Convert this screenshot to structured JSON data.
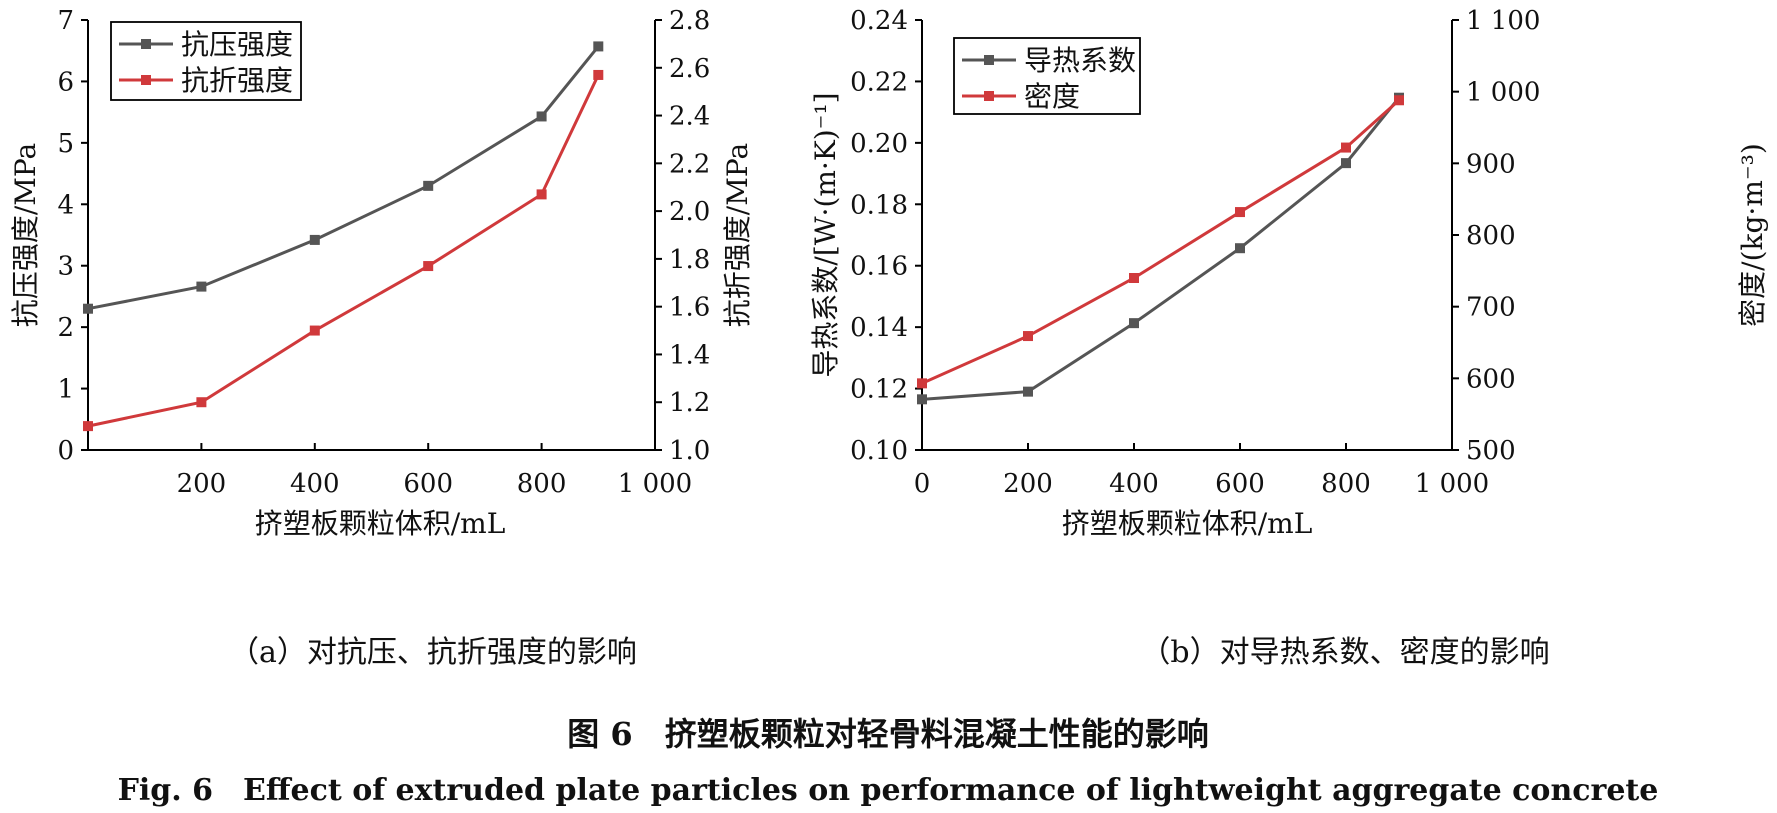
{
  "chart_data": [
    {
      "type": "line",
      "subcaption": "（a）对抗压、抗折强度的影响",
      "xlabel": "挤塑板颗粒体积/mL",
      "ylabel_left": "抗压强度/MPa",
      "ylabel_right": "抗折强度/MPa",
      "xlim": [
        0,
        1000
      ],
      "ylim_left": [
        0,
        7
      ],
      "ylim_right": [
        1.0,
        2.8
      ],
      "x_ticks": [
        200,
        400,
        600,
        800,
        1000
      ],
      "x_tick_labels": [
        "200",
        "400",
        "600",
        "800",
        "1 000"
      ],
      "y_ticks_left": [
        0,
        1,
        2,
        3,
        4,
        5,
        6,
        7
      ],
      "y_tick_labels_left": [
        "0",
        "1",
        "2",
        "3",
        "4",
        "5",
        "6",
        "7"
      ],
      "y_ticks_right": [
        1.0,
        1.2,
        1.4,
        1.6,
        1.8,
        2.0,
        2.2,
        2.4,
        2.6,
        2.8
      ],
      "y_tick_labels_right": [
        "1.0",
        "1.2",
        "1.4",
        "1.6",
        "1.8",
        "2.0",
        "2.2",
        "2.4",
        "2.6",
        "2.8"
      ],
      "legend_position": "top-left",
      "series": [
        {
          "name": "抗压强度",
          "axis": "left",
          "color": "#555555",
          "x": [
            0,
            200,
            400,
            600,
            800,
            900
          ],
          "y": [
            2.3,
            2.66,
            3.42,
            4.3,
            5.43,
            6.57
          ]
        },
        {
          "name": "抗折强度",
          "axis": "right",
          "color": "#d0393b",
          "x": [
            0,
            200,
            400,
            600,
            800,
            900
          ],
          "y": [
            1.1,
            1.2,
            1.5,
            1.77,
            2.07,
            2.57
          ]
        }
      ]
    },
    {
      "type": "line",
      "subcaption": "（b）对导热系数、密度的影响",
      "xlabel": "挤塑板颗粒体积/mL",
      "ylabel_left": "导热系数/[W·(m·K)⁻¹]",
      "ylabel_right": "密度/(kg·m⁻³)",
      "xlim": [
        0,
        1000
      ],
      "ylim_left": [
        0.1,
        0.24
      ],
      "ylim_right": [
        500,
        1100
      ],
      "x_ticks": [
        0,
        200,
        400,
        600,
        800,
        1000
      ],
      "x_tick_labels": [
        "0",
        "200",
        "400",
        "600",
        "800",
        "1 000"
      ],
      "y_ticks_left": [
        0.1,
        0.12,
        0.14,
        0.16,
        0.18,
        0.2,
        0.22,
        0.24
      ],
      "y_tick_labels_left": [
        "0.10",
        "0.12",
        "0.14",
        "0.16",
        "0.18",
        "0.20",
        "0.22",
        "0.24"
      ],
      "y_ticks_right": [
        500,
        600,
        700,
        800,
        900,
        1000,
        1100
      ],
      "y_tick_labels_right": [
        "500",
        "600",
        "700",
        "800",
        "900",
        "1 000",
        "1 100"
      ],
      "legend_position": "top-left",
      "series": [
        {
          "name": "导热系数",
          "axis": "left",
          "color": "#555555",
          "x": [
            0,
            200,
            400,
            600,
            800,
            900
          ],
          "y": [
            0.1165,
            0.119,
            0.1413,
            0.1657,
            0.1934,
            0.2147
          ]
        },
        {
          "name": "密度",
          "axis": "right",
          "color": "#d0393b",
          "x": [
            0,
            200,
            400,
            600,
            800,
            900
          ],
          "y": [
            593,
            659,
            740,
            832,
            922,
            988
          ]
        }
      ]
    }
  ],
  "caption": {
    "cn": "图 6　挤塑板颗粒对轻骨料混凝土性能的影响",
    "en": "Fig. 6　Effect of extruded plate particles on performance of lightweight aggregate concrete"
  }
}
